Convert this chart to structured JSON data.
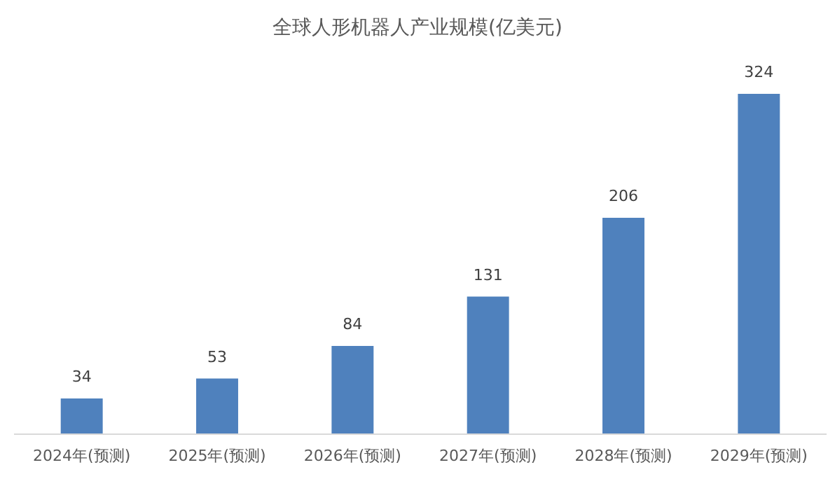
{
  "chart_data": {
    "type": "bar",
    "title": "全球人形机器人产业规模(亿美元)",
    "categories": [
      "2024年(预测)",
      "2025年(预测)",
      "2026年(预测)",
      "2027年(预测)",
      "2028年(预测)",
      "2029年(预测)"
    ],
    "values": [
      34,
      53,
      84,
      131,
      206,
      324
    ],
    "color": "#4f81bd",
    "data_labels": true,
    "grid": false
  }
}
